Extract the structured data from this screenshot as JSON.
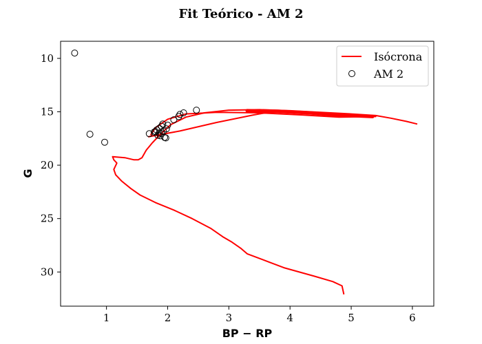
{
  "chart_data": {
    "type": "scatter",
    "title": "Fit Teórico - AM 2",
    "xlabel": "BP − RP",
    "ylabel": "G",
    "xlim": [
      0.25,
      6.35
    ],
    "ylim": [
      33.2,
      8.4
    ],
    "y_inverted": true,
    "x_ticks": [
      "1",
      "2",
      "3",
      "4",
      "5",
      "6"
    ],
    "y_ticks": [
      "10",
      "15",
      "20",
      "25",
      "30"
    ],
    "grid": false,
    "legend_position": "top-right",
    "colors": {
      "isochrone": "#ff0000",
      "points": "#000000"
    },
    "series": [
      {
        "name": "Isócrona",
        "kind": "line",
        "color": "#ff0000",
        "points": [
          [
            4.88,
            32.1
          ],
          [
            4.85,
            31.3
          ],
          [
            4.7,
            30.9
          ],
          [
            4.4,
            30.4
          ],
          [
            3.9,
            29.6
          ],
          [
            3.3,
            28.3
          ],
          [
            3.2,
            27.8
          ],
          [
            3.05,
            27.2
          ],
          [
            2.9,
            26.7
          ],
          [
            2.7,
            25.9
          ],
          [
            2.4,
            25.0
          ],
          [
            2.1,
            24.2
          ],
          [
            1.8,
            23.5
          ],
          [
            1.55,
            22.8
          ],
          [
            1.4,
            22.2
          ],
          [
            1.25,
            21.5
          ],
          [
            1.15,
            20.9
          ],
          [
            1.12,
            20.4
          ],
          [
            1.17,
            19.8
          ],
          [
            1.12,
            19.5
          ],
          [
            1.1,
            19.2
          ],
          [
            1.3,
            19.3
          ],
          [
            1.45,
            19.5
          ],
          [
            1.52,
            19.5
          ],
          [
            1.58,
            19.3
          ],
          [
            1.65,
            18.6
          ],
          [
            1.75,
            17.9
          ],
          [
            1.9,
            17.0
          ],
          [
            2.05,
            16.2
          ],
          [
            2.3,
            15.5
          ],
          [
            2.6,
            15.1
          ],
          [
            3.0,
            14.85
          ],
          [
            3.5,
            14.8
          ],
          [
            4.0,
            14.9
          ],
          [
            4.5,
            15.05
          ],
          [
            5.0,
            15.2
          ],
          [
            5.4,
            15.35
          ],
          [
            5.65,
            15.6
          ],
          [
            5.9,
            15.9
          ],
          [
            6.08,
            16.15
          ]
        ],
        "extra_path": [
          [
            1.68,
            17.35
          ],
          [
            2.2,
            16.8
          ],
          [
            2.8,
            16.0
          ],
          [
            3.4,
            15.3
          ],
          [
            3.8,
            14.9
          ],
          [
            4.3,
            15.1
          ],
          [
            4.8,
            15.3
          ],
          [
            5.4,
            15.45
          ],
          [
            4.8,
            15.5
          ],
          [
            4.2,
            15.3
          ],
          [
            3.5,
            15.1
          ],
          [
            2.8,
            15.05
          ],
          [
            2.3,
            15.2
          ],
          [
            2.0,
            15.7
          ],
          [
            1.8,
            16.5
          ],
          [
            1.72,
            17.2
          ]
        ]
      },
      {
        "name": "AM 2",
        "kind": "scatter",
        "color": "#000000",
        "points": [
          [
            0.48,
            9.5
          ],
          [
            0.73,
            17.1
          ],
          [
            0.97,
            17.85
          ],
          [
            1.7,
            17.05
          ],
          [
            1.78,
            16.9
          ],
          [
            1.82,
            16.7
          ],
          [
            1.86,
            16.55
          ],
          [
            1.9,
            16.35
          ],
          [
            1.92,
            16.15
          ],
          [
            1.84,
            17.2
          ],
          [
            1.88,
            17.25
          ],
          [
            1.95,
            17.4
          ],
          [
            1.97,
            17.45
          ],
          [
            1.9,
            17.05
          ],
          [
            1.93,
            16.8
          ],
          [
            1.98,
            16.6
          ],
          [
            2.0,
            16.25
          ],
          [
            2.1,
            15.75
          ],
          [
            2.18,
            15.45
          ],
          [
            2.2,
            15.25
          ],
          [
            2.26,
            15.1
          ],
          [
            2.47,
            14.85
          ],
          [
            1.8,
            16.85
          ],
          [
            1.86,
            17.0
          ]
        ]
      }
    ]
  }
}
